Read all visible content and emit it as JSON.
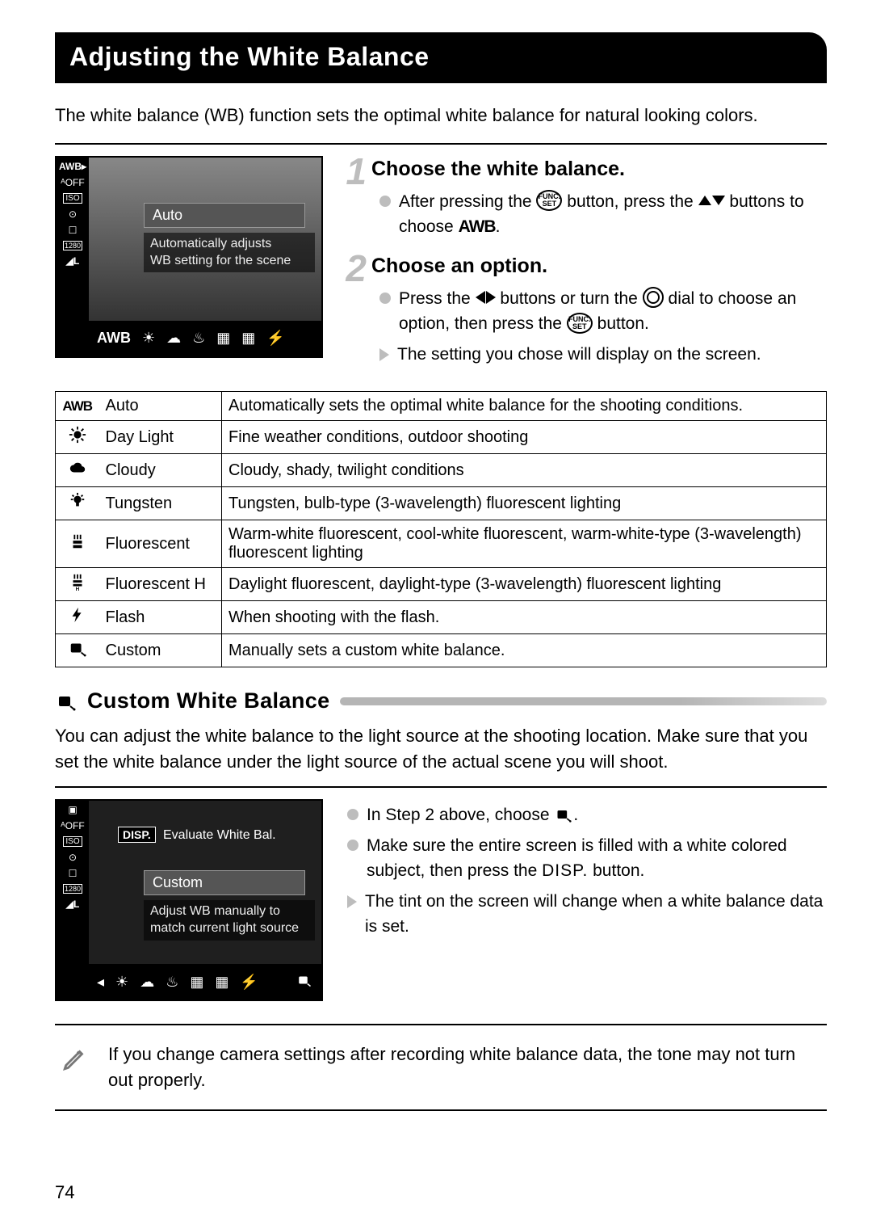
{
  "title": "Adjusting the White Balance",
  "intro": "The white balance (WB) function sets the optimal white balance for natural looking colors.",
  "page_number": "74",
  "lcd1": {
    "side_top": "AWB ▸",
    "mode_label": "Auto",
    "desc_line1": "Automatically adjusts",
    "desc_line2": "WB setting for the scene",
    "bottom_awb": "AWB",
    "side_icons": [
      "AWB▸",
      "ᴬOFF",
      "ISO",
      "⊙",
      "☐",
      "1280",
      "◢L"
    ]
  },
  "step1": {
    "num": "1",
    "title": "Choose the white balance.",
    "line1a": "After pressing the ",
    "func_label": "FUNC.\nSET",
    "line1b": " button, press the ",
    "line1c": " buttons to choose ",
    "awb": "AWB",
    "period": "."
  },
  "step2": {
    "num": "2",
    "title": "Choose an option.",
    "line1a": "Press the ",
    "line1b": " buttons or turn the ",
    "line1c": " dial to choose an option, then press the ",
    "line1d": " button.",
    "result": "The setting you chose will display on the screen."
  },
  "table": {
    "rows": [
      {
        "icon": "awb",
        "name": "Auto",
        "desc": "Automatically sets the optimal white balance for the shooting conditions."
      },
      {
        "icon": "sun",
        "name": "Day Light",
        "desc": "Fine weather conditions, outdoor shooting"
      },
      {
        "icon": "cloud",
        "name": "Cloudy",
        "desc": "Cloudy, shady, twilight conditions"
      },
      {
        "icon": "bulb",
        "name": "Tungsten",
        "desc": "Tungsten, bulb-type (3-wavelength) fluorescent lighting"
      },
      {
        "icon": "fluo",
        "name": "Fluorescent",
        "desc": "Warm-white fluorescent, cool-white fluorescent, warm-white-type (3-wavelength) fluorescent lighting"
      },
      {
        "icon": "fluoh",
        "name": "Fluorescent H",
        "desc": "Daylight fluorescent, daylight-type (3-wavelength) fluorescent lighting"
      },
      {
        "icon": "flash",
        "name": "Flash",
        "desc": "When shooting with the flash."
      },
      {
        "icon": "custom",
        "name": "Custom",
        "desc": "Manually sets a custom white balance."
      }
    ]
  },
  "subheading": "Custom White Balance",
  "custom_intro": "You can adjust the white balance to the light source at the shooting location. Make sure that you set the white balance under the light source of the actual scene you will shoot.",
  "lcd2": {
    "disp": "DISP.",
    "eval": "Evaluate White Bal.",
    "mode_label": "Custom",
    "desc_line1": "Adjust WB manually to",
    "desc_line2": "match current light source"
  },
  "custom_steps": {
    "line1a": "In Step 2 above, choose ",
    "line1b": ".",
    "line2a": "Make sure the entire screen is filled with a white colored subject, then press the ",
    "disp": "DISP.",
    "line2b": " button.",
    "result": "The tint on the screen will change when a white balance data is set."
  },
  "note": "If you change camera settings after recording white balance data, the tone may not turn out properly.",
  "colors": {
    "step_num": "#bdbdbd",
    "bullet": "#bdbdbd",
    "banner_bg": "#000000",
    "banner_fg": "#ffffff"
  }
}
